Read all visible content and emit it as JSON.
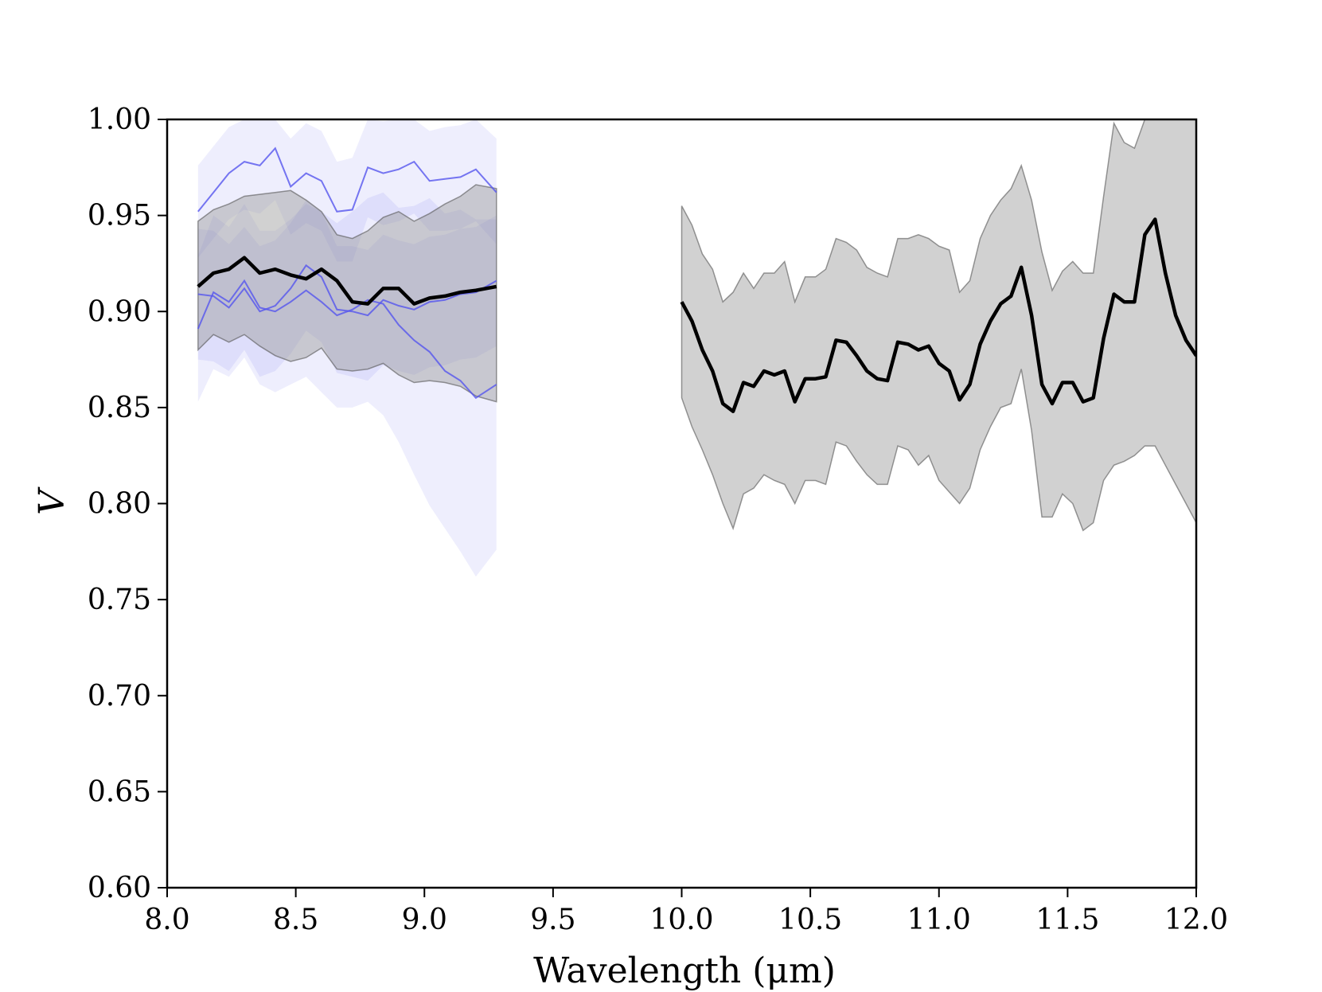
{
  "chart_data": {
    "type": "line",
    "xlabel": "Wavelength (μm)",
    "ylabel": "V",
    "xlim": [
      8.0,
      12.0
    ],
    "ylim": [
      0.6,
      1.0
    ],
    "xticks": [
      "8.0",
      "8.5",
      "9.0",
      "9.5",
      "10.0",
      "10.5",
      "11.0",
      "11.5",
      "12.0"
    ],
    "yticks": [
      "0.60",
      "0.65",
      "0.70",
      "0.75",
      "0.80",
      "0.85",
      "0.90",
      "0.95",
      "1.00"
    ],
    "grid": false,
    "colors": {
      "mean": "#000000",
      "mean_band": "#999999",
      "individual": "#5555ee",
      "individual_band": "#d6d6f8"
    },
    "segments": [
      {
        "x": [
          8.12,
          8.18,
          8.24,
          8.3,
          8.36,
          8.42,
          8.48,
          8.54,
          8.6,
          8.66,
          8.72,
          8.78,
          8.84,
          8.9,
          8.96,
          9.02,
          9.08,
          9.14,
          9.2,
          9.28
        ],
        "mean": [
          0.913,
          0.92,
          0.922,
          0.928,
          0.92,
          0.922,
          0.919,
          0.917,
          0.922,
          0.916,
          0.905,
          0.904,
          0.912,
          0.912,
          0.904,
          0.907,
          0.908,
          0.91,
          0.911,
          0.913
        ],
        "mean_band_lower": [
          0.88,
          0.888,
          0.884,
          0.888,
          0.882,
          0.877,
          0.874,
          0.876,
          0.881,
          0.87,
          0.869,
          0.87,
          0.873,
          0.867,
          0.863,
          0.864,
          0.863,
          0.861,
          0.856,
          0.853
        ],
        "mean_band_upper": [
          0.947,
          0.953,
          0.956,
          0.96,
          0.961,
          0.962,
          0.963,
          0.958,
          0.952,
          0.94,
          0.938,
          0.942,
          0.949,
          0.952,
          0.947,
          0.951,
          0.956,
          0.96,
          0.966,
          0.964
        ],
        "individual": [
          {
            "values": [
              0.952,
              0.962,
              0.972,
              0.978,
              0.976,
              0.985,
              0.965,
              0.972,
              0.968,
              0.952,
              0.953,
              0.975,
              0.972,
              0.974,
              0.978,
              0.968,
              0.969,
              0.97,
              0.974,
              0.962
            ],
            "band_lower": [
              0.928,
              0.938,
              0.948,
              0.953,
              0.951,
              0.958,
              0.94,
              0.946,
              0.942,
              0.926,
              0.926,
              0.949,
              0.945,
              0.947,
              0.951,
              0.942,
              0.942,
              0.943,
              0.947,
              0.935
            ],
            "band_upper": [
              0.976,
              0.986,
              0.996,
              1.0,
              1.0,
              1.0,
              0.99,
              0.998,
              0.994,
              0.978,
              0.98,
              1.0,
              0.999,
              1.0,
              1.0,
              0.994,
              0.996,
              0.997,
              1.0,
              0.99
            ]
          },
          {
            "values": [
              0.909,
              0.908,
              0.902,
              0.912,
              0.9,
              0.903,
              0.912,
              0.924,
              0.918,
              0.901,
              0.9,
              0.898,
              0.906,
              0.903,
              0.901,
              0.905,
              0.906,
              0.909,
              0.91,
              0.916
            ],
            "band_lower": [
              0.875,
              0.874,
              0.869,
              0.88,
              0.866,
              0.869,
              0.878,
              0.89,
              0.884,
              0.868,
              0.866,
              0.864,
              0.872,
              0.869,
              0.867,
              0.871,
              0.872,
              0.875,
              0.876,
              0.882
            ],
            "band_upper": [
              0.943,
              0.942,
              0.935,
              0.944,
              0.934,
              0.937,
              0.946,
              0.958,
              0.952,
              0.934,
              0.934,
              0.932,
              0.94,
              0.937,
              0.935,
              0.939,
              0.94,
              0.943,
              0.944,
              0.95
            ]
          },
          {
            "values": [
              0.891,
              0.91,
              0.905,
              0.916,
              0.902,
              0.9,
              0.905,
              0.911,
              0.905,
              0.898,
              0.901,
              0.906,
              0.904,
              0.893,
              0.885,
              0.879,
              0.869,
              0.864,
              0.855,
              0.862
            ],
            "band_lower": [
              0.853,
              0.87,
              0.866,
              0.876,
              0.862,
              0.858,
              0.862,
              0.866,
              0.858,
              0.85,
              0.85,
              0.853,
              0.846,
              0.832,
              0.815,
              0.799,
              0.787,
              0.775,
              0.762,
              0.776
            ],
            "band_upper": [
              0.929,
              0.95,
              0.944,
              0.956,
              0.942,
              0.942,
              0.948,
              0.956,
              0.952,
              0.946,
              0.952,
              0.959,
              0.962,
              0.954,
              0.955,
              0.959,
              0.951,
              0.953,
              0.948,
              0.948
            ]
          }
        ]
      },
      {
        "x": [
          10.0,
          10.04,
          10.08,
          10.12,
          10.16,
          10.2,
          10.24,
          10.28,
          10.32,
          10.36,
          10.4,
          10.44,
          10.48,
          10.52,
          10.56,
          10.6,
          10.64,
          10.68,
          10.72,
          10.76,
          10.8,
          10.84,
          10.88,
          10.92,
          10.96,
          11.0,
          11.04,
          11.08,
          11.12,
          11.16,
          11.2,
          11.24,
          11.28,
          11.32,
          11.36,
          11.4,
          11.44,
          11.48,
          11.52,
          11.56,
          11.6,
          11.64,
          11.68,
          11.72,
          11.76,
          11.8,
          11.84,
          11.88,
          11.92,
          11.96,
          12.0
        ],
        "mean": [
          0.905,
          0.895,
          0.88,
          0.869,
          0.852,
          0.848,
          0.863,
          0.861,
          0.869,
          0.867,
          0.869,
          0.853,
          0.865,
          0.865,
          0.866,
          0.885,
          0.884,
          0.877,
          0.869,
          0.865,
          0.864,
          0.884,
          0.883,
          0.88,
          0.882,
          0.873,
          0.869,
          0.854,
          0.862,
          0.883,
          0.895,
          0.904,
          0.908,
          0.923,
          0.898,
          0.862,
          0.852,
          0.863,
          0.863,
          0.853,
          0.855,
          0.886,
          0.909,
          0.905,
          0.905,
          0.94,
          0.948,
          0.92,
          0.898,
          0.885,
          0.877
        ],
        "mean_band_lower": [
          0.855,
          0.84,
          0.828,
          0.815,
          0.8,
          0.787,
          0.805,
          0.808,
          0.815,
          0.812,
          0.81,
          0.8,
          0.812,
          0.812,
          0.81,
          0.832,
          0.83,
          0.822,
          0.815,
          0.81,
          0.81,
          0.83,
          0.828,
          0.82,
          0.825,
          0.812,
          0.806,
          0.8,
          0.808,
          0.828,
          0.84,
          0.85,
          0.852,
          0.87,
          0.838,
          0.793,
          0.793,
          0.805,
          0.8,
          0.786,
          0.79,
          0.812,
          0.82,
          0.822,
          0.825,
          0.83,
          0.83,
          0.82,
          0.81,
          0.8,
          0.79
        ],
        "mean_band_upper": [
          0.955,
          0.945,
          0.93,
          0.922,
          0.905,
          0.91,
          0.92,
          0.912,
          0.92,
          0.92,
          0.926,
          0.905,
          0.918,
          0.918,
          0.922,
          0.938,
          0.936,
          0.932,
          0.923,
          0.92,
          0.918,
          0.938,
          0.938,
          0.94,
          0.938,
          0.934,
          0.932,
          0.91,
          0.916,
          0.938,
          0.95,
          0.958,
          0.964,
          0.976,
          0.958,
          0.931,
          0.911,
          0.921,
          0.926,
          0.92,
          0.92,
          0.96,
          0.998,
          0.988,
          0.985,
          1.0,
          1.0,
          1.0,
          1.0,
          1.0,
          1.0
        ]
      }
    ]
  }
}
